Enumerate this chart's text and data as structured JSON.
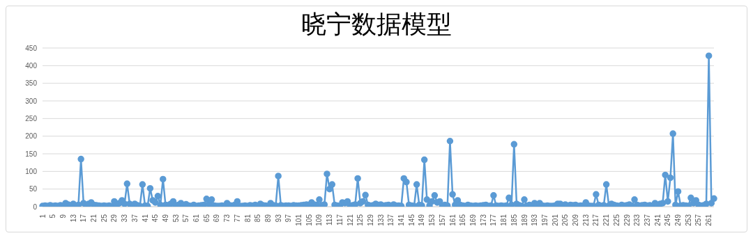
{
  "chart_data": {
    "type": "line",
    "title": "晓宁数据模型",
    "categories": [
      "1",
      null,
      null,
      null,
      "5",
      null,
      null,
      null,
      "9",
      null,
      null,
      null,
      "13",
      null,
      null,
      null,
      "17",
      null,
      null,
      null,
      "21",
      null,
      null,
      null,
      "25",
      null,
      null,
      null,
      "29",
      null,
      null,
      null,
      "33",
      null,
      null,
      null,
      "37",
      null,
      null,
      null,
      "41",
      null,
      null,
      null,
      "45",
      null,
      null,
      null,
      "49",
      null,
      null,
      null,
      "53",
      null,
      null,
      null,
      "57",
      null,
      null,
      null,
      "61",
      null,
      null,
      null,
      "65",
      null,
      null,
      null,
      "69",
      null,
      null,
      null,
      "73",
      null,
      null,
      null,
      "77",
      null,
      null,
      null,
      "81",
      null,
      null,
      null,
      "85",
      null,
      null,
      null,
      "89",
      null,
      null,
      null,
      "93",
      null,
      null,
      null,
      "97",
      null,
      null,
      null,
      "101",
      null,
      null,
      null,
      "105",
      null,
      null,
      null,
      "109",
      null,
      null,
      null,
      "113",
      null,
      null,
      null,
      "117",
      null,
      null,
      null,
      "121",
      null,
      null,
      null,
      "125",
      null,
      null,
      null,
      "129",
      null,
      null,
      null,
      "133",
      null,
      null,
      null,
      "137",
      null,
      null,
      null,
      "141",
      null,
      null,
      null,
      "145",
      null,
      null,
      null,
      "149",
      null,
      null,
      null,
      "153",
      null,
      null,
      null,
      "157",
      null,
      null,
      null,
      "161",
      null,
      null,
      null,
      "165",
      null,
      null,
      null,
      "169",
      null,
      null,
      null,
      "173",
      null,
      null,
      null,
      "177",
      null,
      null,
      null,
      "181",
      null,
      null,
      null,
      "185",
      null,
      null,
      null,
      "189",
      null,
      null,
      null,
      "193",
      null,
      null,
      null,
      "197",
      null,
      null,
      null,
      "201",
      null,
      null,
      null,
      "205",
      null,
      null,
      null,
      "209",
      null,
      null,
      null,
      "213",
      null,
      null,
      null,
      "217",
      null,
      null,
      null,
      "221",
      null,
      null,
      null,
      "225",
      null,
      null,
      null,
      "229",
      null,
      null,
      null,
      "233",
      null,
      null,
      null,
      "237",
      null,
      null,
      null,
      "241",
      null,
      null,
      null,
      "245",
      null,
      null,
      null,
      "249",
      null,
      null,
      null,
      "253",
      null,
      null,
      null,
      "257",
      null,
      null,
      null,
      "261",
      null,
      null
    ],
    "series": [
      {
        "color": "#5b9bd5",
        "values": [
          2,
          3,
          2,
          4,
          2,
          3,
          2,
          4,
          3,
          10,
          6,
          2,
          8,
          3,
          5,
          135,
          10,
          3,
          8,
          12,
          5,
          4,
          3,
          2,
          3,
          2,
          3,
          1,
          15,
          5,
          10,
          18,
          8,
          65,
          8,
          3,
          8,
          4,
          2,
          63,
          3,
          2,
          52,
          18,
          12,
          30,
          5,
          78,
          5,
          4,
          8,
          15,
          3,
          5,
          10,
          4,
          7,
          3,
          2,
          5,
          2,
          3,
          4,
          5,
          22,
          8,
          20,
          3,
          2,
          2,
          3,
          2,
          10,
          4,
          3,
          5,
          15,
          2,
          2,
          3,
          2,
          4,
          3,
          5,
          2,
          8,
          4,
          3,
          2,
          10,
          4,
          3,
          87,
          4,
          2,
          3,
          3,
          2,
          4,
          3,
          3,
          4,
          5,
          6,
          5,
          12,
          6,
          5,
          20,
          4,
          6,
          93,
          50,
          63,
          5,
          3,
          2,
          12,
          10,
          15,
          3,
          4,
          6,
          80,
          10,
          15,
          33,
          5,
          3,
          4,
          8,
          5,
          6,
          3,
          4,
          5,
          3,
          6,
          3,
          3,
          2,
          80,
          70,
          5,
          3,
          2,
          63,
          5,
          3,
          133,
          20,
          3,
          15,
          32,
          12,
          15,
          3,
          5,
          3,
          186,
          35,
          5,
          18,
          5,
          3,
          2,
          5,
          3,
          2,
          3,
          2,
          3,
          4,
          5,
          2,
          3,
          32,
          3,
          2,
          3,
          2,
          3,
          25,
          5,
          177,
          8,
          4,
          2,
          20,
          3,
          5,
          3,
          10,
          4,
          10,
          3,
          2,
          3,
          2,
          2,
          3,
          8,
          8,
          4,
          6,
          3,
          5,
          4,
          5,
          2,
          3,
          3,
          12,
          3,
          2,
          2,
          35,
          5,
          2,
          4,
          63,
          3,
          8,
          5,
          3,
          2,
          5,
          3,
          4,
          6,
          2,
          20,
          5,
          3,
          4,
          5,
          3,
          4,
          2,
          10,
          5,
          8,
          10,
          90,
          15,
          82,
          207,
          5,
          43,
          3,
          4,
          3,
          2,
          25,
          10,
          18,
          5,
          3,
          4,
          8,
          428,
          10,
          23
        ]
      }
    ],
    "ylim": [
      0,
      450
    ],
    "yticks": [
      0,
      50,
      100,
      150,
      200,
      250,
      300,
      350,
      400,
      450
    ],
    "grid": "y",
    "legend": false,
    "marker": "circle",
    "line_style": "solid"
  }
}
